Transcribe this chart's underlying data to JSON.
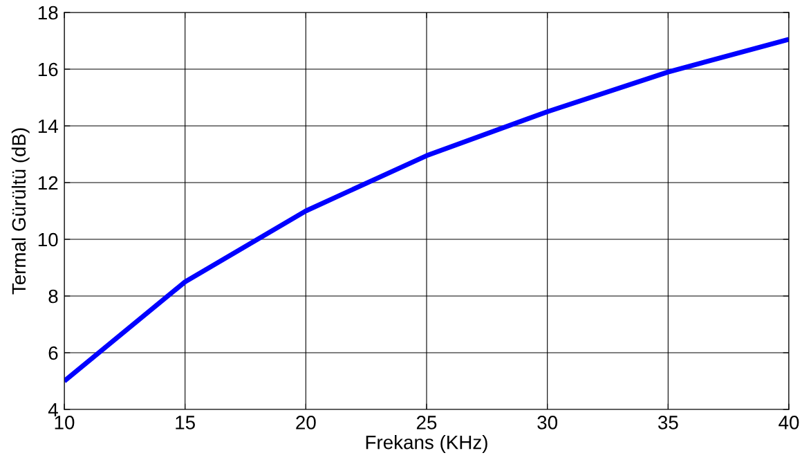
{
  "chart_data": {
    "type": "line",
    "xlabel": "Frekans (KHz)",
    "ylabel": "Termal Gürültü (dB)",
    "x": [
      10,
      15,
      20,
      25,
      30,
      35,
      40
    ],
    "series": [
      {
        "color": "#0000ff",
        "values": [
          5,
          8.5,
          11,
          12.95,
          14.5,
          15.9,
          17.05
        ]
      }
    ],
    "xlim": [
      10,
      40
    ],
    "xticks": [
      10,
      15,
      20,
      25,
      30,
      35,
      40
    ],
    "ylim": [
      4,
      18
    ],
    "yticks": [
      4,
      6,
      8,
      10,
      12,
      14,
      16,
      18
    ],
    "grid": true,
    "line_style": "solid"
  }
}
